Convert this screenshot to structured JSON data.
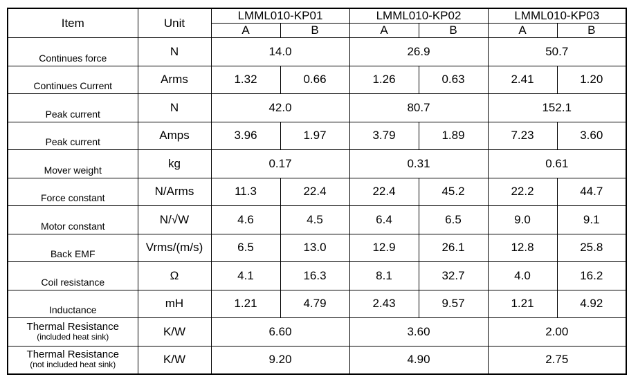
{
  "table": {
    "header": {
      "item": "Item",
      "unit": "Unit",
      "models": [
        "LMML010-KP01",
        "LMML010-KP02",
        "LMML010-KP03"
      ],
      "variants": [
        "A",
        "B",
        "A",
        "B",
        "A",
        "B"
      ]
    },
    "rows": [
      {
        "item": "Continues force",
        "unit": "N",
        "values": [
          "14.0",
          "26.9",
          "50.7"
        ]
      },
      {
        "item": "Continues Current",
        "unit": "Arms",
        "values": [
          "1.32",
          "0.66",
          "1.26",
          "0.63",
          "2.41",
          "1.20"
        ]
      },
      {
        "item": "Peak current",
        "unit": "N",
        "values": [
          "42.0",
          "80.7",
          "152.1"
        ]
      },
      {
        "item": "Peak current",
        "unit": "Amps",
        "values": [
          "3.96",
          "1.97",
          "3.79",
          "1.89",
          "7.23",
          "3.60"
        ]
      },
      {
        "item": "Mover weight",
        "unit": "kg",
        "values": [
          "0.17",
          "0.31",
          "0.61"
        ]
      },
      {
        "item": "Force constant",
        "unit": "N/Arms",
        "values": [
          "11.3",
          "22.4",
          "22.4",
          "45.2",
          "22.2",
          "44.7"
        ]
      },
      {
        "item": "Motor constant",
        "unit": "N/√W",
        "values": [
          "4.6",
          "4.5",
          "6.4",
          "6.5",
          "9.0",
          "9.1"
        ]
      },
      {
        "item": "Back EMF",
        "unit": "Vrms/(m/s)",
        "values": [
          "6.5",
          "13.0",
          "12.9",
          "26.1",
          "12.8",
          "25.8"
        ]
      },
      {
        "item": "Coil resistance",
        "unit": "Ω",
        "values": [
          "4.1",
          "16.3",
          "8.1",
          "32.7",
          "4.0",
          "16.2"
        ]
      },
      {
        "item": "Inductance",
        "unit": "mH",
        "values": [
          "1.21",
          "4.79",
          "2.43",
          "9.57",
          "1.21",
          "4.92"
        ]
      },
      {
        "item": "Thermal Resistance",
        "note": "(included heat sink)",
        "unit": "K/W",
        "values": [
          "6.60",
          "3.60",
          "2.00"
        ]
      },
      {
        "item": "Thermal Resistance",
        "note": "(not included heat sink)",
        "unit": "K/W",
        "values": [
          "9.20",
          "4.90",
          "2.75"
        ]
      }
    ]
  }
}
